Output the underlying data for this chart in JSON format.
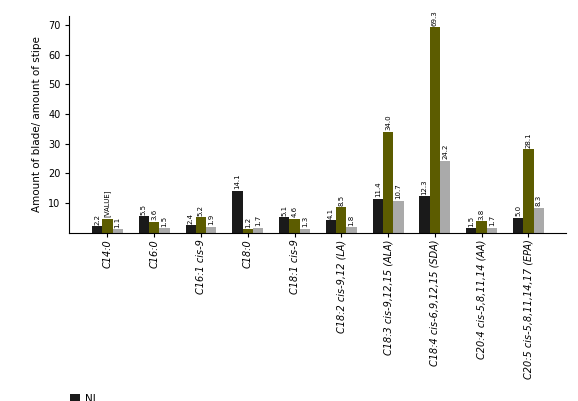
{
  "categories": [
    "C14:0",
    "C16:0",
    "C16:1 cis-9",
    "C18:0",
    "C18:1 cis-9",
    "C18:2 cis-9,12 (LA)",
    "C18:3 cis-9,12,15 (ALA)",
    "C18:4 cis-6,9,12,15 (SDA)",
    "C20:4 cis-5,8,11,14 (AA)",
    "C20:5 cis-5,8,11,14,17 (EPA)"
  ],
  "NL": [
    2.2,
    5.5,
    2.4,
    14.1,
    5.1,
    4.1,
    11.4,
    12.3,
    1.5,
    5.0
  ],
  "FFA": [
    4.6,
    3.6,
    5.2,
    1.2,
    4.6,
    8.5,
    34.0,
    69.3,
    3.8,
    28.1
  ],
  "PL": [
    1.1,
    1.5,
    1.9,
    1.7,
    1.3,
    1.8,
    10.7,
    24.2,
    1.7,
    8.3
  ],
  "NL_color": "#1a1a1a",
  "FFA_color": "#5c5c00",
  "PL_color": "#aaaaaa",
  "ylabel": "Amount of blade/ amount of stipe",
  "ylim": [
    0,
    73
  ],
  "yticks": [
    10,
    20,
    30,
    40,
    50,
    60,
    70
  ],
  "bar_width": 0.22,
  "value_fontsize": 5.0,
  "axis_fontsize": 7.5,
  "tick_fontsize": 7,
  "legend_fontsize": 7.5,
  "ffa_label_special": "[VALUE]"
}
